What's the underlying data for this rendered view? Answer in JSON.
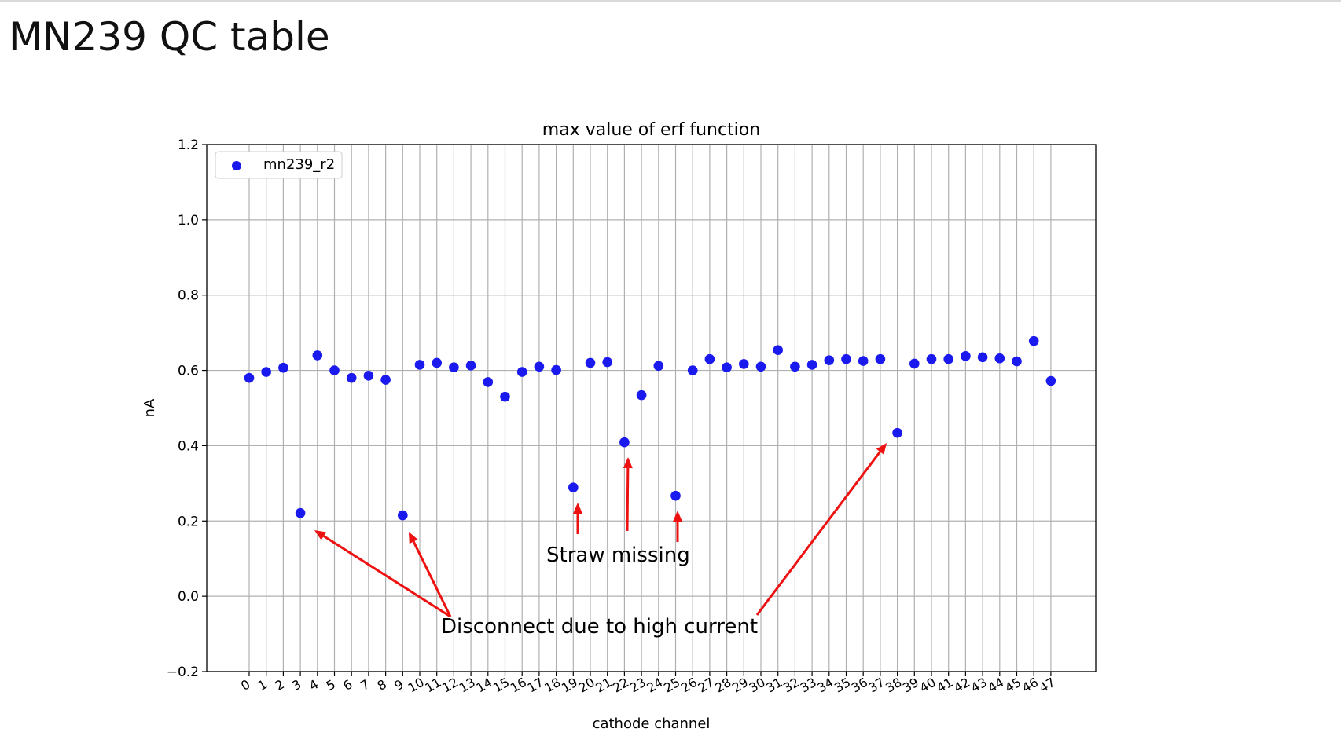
{
  "slide": {
    "title": "MN239 QC table"
  },
  "annotations": {
    "straw_missing": "Straw missing",
    "disconnect": "Disconnect due to high current"
  },
  "colors": {
    "point": "#1a1aee",
    "arrow": "#ee1111",
    "grid": "#b0b0b0"
  },
  "chart_data": {
    "type": "scatter",
    "title": "max value of erf function",
    "xlabel": "cathode channel",
    "ylabel": "nA",
    "ylim": [
      -0.2,
      1.2
    ],
    "yticks": [
      -0.2,
      0.0,
      0.2,
      0.4,
      0.6,
      0.8,
      1.0,
      1.2
    ],
    "ytick_labels": [
      "−0.2",
      "0.0",
      "0.2",
      "0.4",
      "0.6",
      "0.8",
      "1.0",
      "1.2"
    ],
    "xticks": [
      0,
      1,
      2,
      3,
      4,
      5,
      6,
      7,
      8,
      9,
      10,
      11,
      12,
      13,
      14,
      15,
      16,
      17,
      18,
      19,
      20,
      21,
      22,
      23,
      24,
      25,
      26,
      27,
      28,
      29,
      30,
      31,
      32,
      33,
      34,
      35,
      36,
      37,
      38,
      39,
      40,
      41,
      42,
      43,
      44,
      45,
      46,
      47
    ],
    "grid": true,
    "legend_position": "top-left",
    "series": [
      {
        "name": "mn239_r2",
        "x": [
          0,
          1,
          2,
          3,
          4,
          5,
          6,
          7,
          8,
          9,
          10,
          11,
          12,
          13,
          14,
          15,
          16,
          17,
          18,
          19,
          20,
          21,
          22,
          23,
          24,
          25,
          26,
          27,
          28,
          29,
          30,
          31,
          32,
          33,
          34,
          35,
          36,
          37,
          38,
          39,
          40,
          41,
          42,
          43,
          44,
          45,
          46,
          47
        ],
        "y": [
          0.58,
          0.596,
          0.607,
          0.221,
          0.64,
          0.6,
          0.58,
          0.586,
          0.575,
          0.215,
          0.615,
          0.62,
          0.608,
          0.613,
          0.569,
          0.53,
          0.596,
          0.61,
          0.601,
          0.289,
          0.62,
          0.622,
          0.409,
          0.534,
          0.612,
          0.267,
          0.6,
          0.63,
          0.608,
          0.617,
          0.61,
          0.654,
          0.61,
          0.615,
          0.627,
          0.63,
          0.625,
          0.63,
          0.434,
          0.618,
          0.63,
          0.63,
          0.638,
          0.635,
          0.632,
          0.624,
          0.678,
          0.572
        ]
      }
    ]
  }
}
